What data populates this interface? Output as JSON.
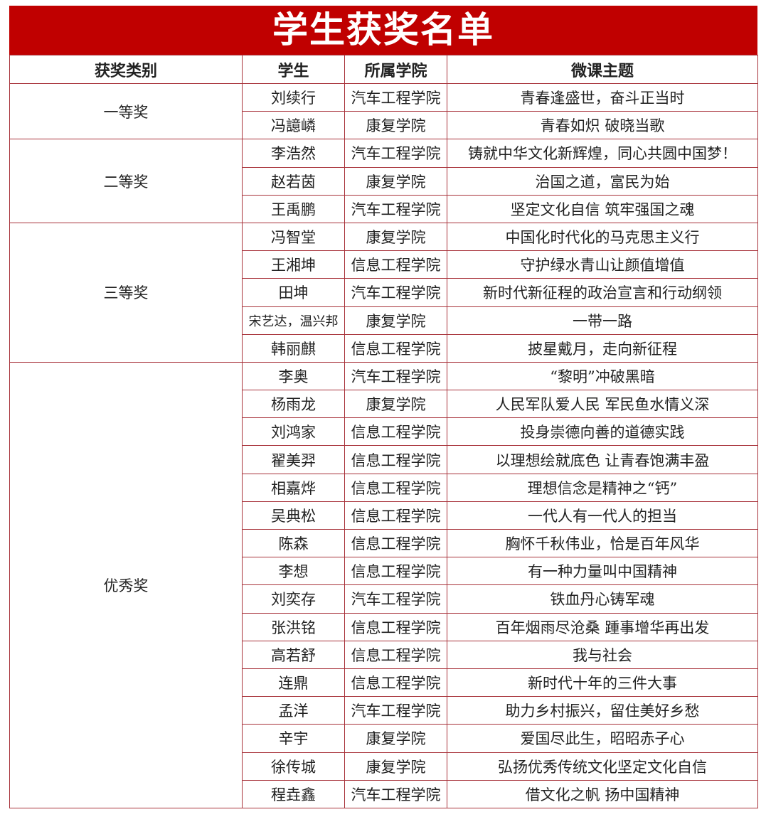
{
  "title": "学生获奖名单",
  "colors": {
    "title_bg": "#c00000",
    "border": "#a8323a"
  },
  "headers": [
    "获奖类别",
    "学生",
    "所属学院",
    "微课主题"
  ],
  "groups": [
    {
      "category": "一等奖",
      "rows": [
        [
          "刘续行",
          "汽车工程学院",
          "青春逢盛世，奋斗正当时"
        ],
        [
          "冯譩嶙",
          "康复学院",
          "青春如炽 破晓当歌"
        ]
      ]
    },
    {
      "category": "二等奖",
      "rows": [
        [
          "李浩然",
          "汽车工程学院",
          "铸就中华文化新辉煌，同心共圆中国梦！"
        ],
        [
          "赵若茵",
          "康复学院",
          "治国之道，富民为始"
        ],
        [
          "王禹鹏",
          "汽车工程学院",
          "坚定文化自信 筑牢强国之魂"
        ]
      ]
    },
    {
      "category": "三等奖",
      "rows": [
        [
          "冯智堂",
          "康复学院",
          "中国化时代化的马克思主义行"
        ],
        [
          "王湘坤",
          "信息工程学院",
          "守护绿水青山让颜值增值"
        ],
        [
          "田坤",
          "汽车工程学院",
          "新时代新征程的政治宣言和行动纲领"
        ],
        [
          "宋艺达，温兴邦",
          "康复学院",
          "一带一路"
        ],
        [
          "韩丽麒",
          "信息工程学院",
          "披星戴月，走向新征程"
        ]
      ]
    },
    {
      "category": "优秀奖",
      "rows": [
        [
          "李奥",
          "汽车工程学院",
          "“黎明”冲破黑暗"
        ],
        [
          "杨雨龙",
          "康复学院",
          "人民军队爱人民 军民鱼水情义深"
        ],
        [
          "刘鸿家",
          "信息工程学院",
          "投身崇德向善的道德实践"
        ],
        [
          "翟美羿",
          "信息工程学院",
          "以理想绘就底色 让青春饱满丰盈"
        ],
        [
          "相嘉烨",
          "信息工程学院",
          "理想信念是精神之“钙”"
        ],
        [
          "吴典松",
          "信息工程学院",
          "一代人有一代人的担当"
        ],
        [
          "陈森",
          "信息工程学院",
          "胸怀千秋伟业，恰是百年风华"
        ],
        [
          "李想",
          "信息工程学院",
          "有一种力量叫中国精神"
        ],
        [
          "刘奕存",
          "汽车工程学院",
          "铁血丹心铸军魂"
        ],
        [
          "张洪铭",
          "信息工程学院",
          "百年烟雨尽沧桑 踵事增华再出发"
        ],
        [
          "高若舒",
          "信息工程学院",
          "我与社会"
        ],
        [
          "连鼎",
          "信息工程学院",
          "新时代十年的三件大事"
        ],
        [
          "孟洋",
          "汽车工程学院",
          "助力乡村振兴，留住美好乡愁"
        ],
        [
          "辛宇",
          "康复学院",
          "爱国尽此生，昭昭赤子心"
        ],
        [
          "徐传城",
          "康复学院",
          "弘扬优秀传统文化坚定文化自信"
        ],
        [
          "程垚鑫",
          "汽车工程学院",
          "借文化之帆 扬中国精神"
        ]
      ]
    }
  ]
}
